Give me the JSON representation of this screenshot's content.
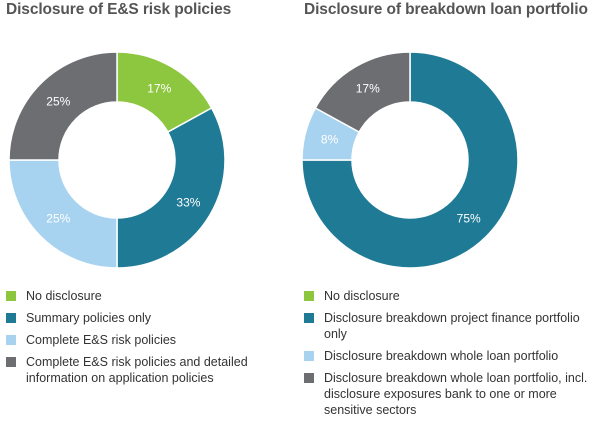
{
  "chart_data": [
    {
      "type": "pie",
      "title": "Disclosure of E&S risk policies",
      "categories": [
        "No disclosure",
        "Summary policies only",
        "Complete E&S risk policies",
        "Complete E&S risk policies and detailed information on application policies"
      ],
      "values": [
        17,
        33,
        25,
        25
      ],
      "data_labels": [
        "17%",
        "33%",
        "25%",
        "25%"
      ],
      "colors": [
        "#8dc63f",
        "#1f7a95",
        "#a8d3f0",
        "#6d6e71"
      ],
      "legend": "bottom"
    },
    {
      "type": "pie",
      "title": "Disclosure of breakdown loan portfolio",
      "categories": [
        "No disclosure",
        "Disclosure breakdown project finance portfolio only",
        "Disclosure breakdown whole loan portfolio",
        "Disclosure breakdown whole loan portfolio, incl. disclosure exposures bank to one or more sensitive sectors"
      ],
      "values": [
        0,
        75,
        8,
        17
      ],
      "data_labels": [
        "",
        "75%",
        "8%",
        "17%"
      ],
      "colors": [
        "#8dc63f",
        "#1f7a95",
        "#a8d3f0",
        "#6d6e71"
      ],
      "legend": "bottom"
    }
  ]
}
